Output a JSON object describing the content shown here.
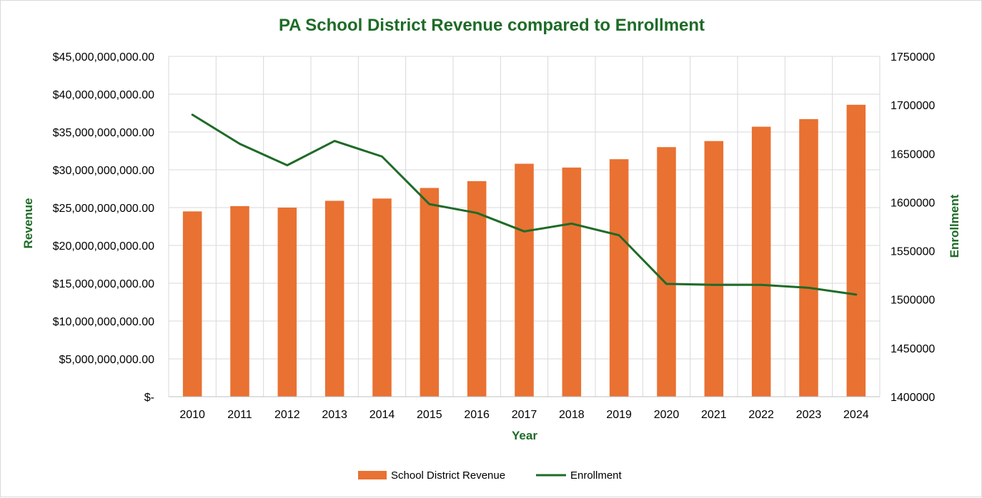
{
  "colors": {
    "accent": "#1e6b27",
    "bar": "#e97132",
    "line": "#1e6b27",
    "grid": "#d9d9d9"
  },
  "chart_data": {
    "type": "bar",
    "title": "PA School District Revenue compared to Enrollment",
    "xlabel": "Year",
    "ylabel": "Revenue",
    "y2label": "Enrollment",
    "categories": [
      "2010",
      "2011",
      "2012",
      "2013",
      "2014",
      "2015",
      "2016",
      "2017",
      "2018",
      "2019",
      "2020",
      "2021",
      "2022",
      "2023",
      "2024"
    ],
    "ylim": [
      0,
      45000000000
    ],
    "y2lim": [
      1400000,
      1750000
    ],
    "y_ticks": [
      "$-",
      "$5,000,000,000.00",
      "$10,000,000,000.00",
      "$15,000,000,000.00",
      "$20,000,000,000.00",
      "$25,000,000,000.00",
      "$30,000,000,000.00",
      "$35,000,000,000.00",
      "$40,000,000,000.00",
      "$45,000,000,000.00"
    ],
    "y2_ticks": [
      "1400000",
      "1450000",
      "1500000",
      "1550000",
      "1600000",
      "1650000",
      "1700000",
      "1750000"
    ],
    "grid": true,
    "legend_position": "bottom",
    "series": [
      {
        "name": "School District Revenue",
        "type": "bar",
        "axis": "left",
        "values": [
          24500000000,
          25200000000,
          25000000000,
          25900000000,
          26200000000,
          27600000000,
          28500000000,
          30800000000,
          30300000000,
          31400000000,
          33000000000,
          33800000000,
          35700000000,
          36700000000,
          38600000000
        ]
      },
      {
        "name": "Enrollment",
        "type": "line",
        "axis": "right",
        "values": [
          1690000,
          1660000,
          1638000,
          1663000,
          1647000,
          1598000,
          1589000,
          1570000,
          1578000,
          1566000,
          1516000,
          1515000,
          1515000,
          1512000,
          1505000
        ]
      }
    ]
  }
}
